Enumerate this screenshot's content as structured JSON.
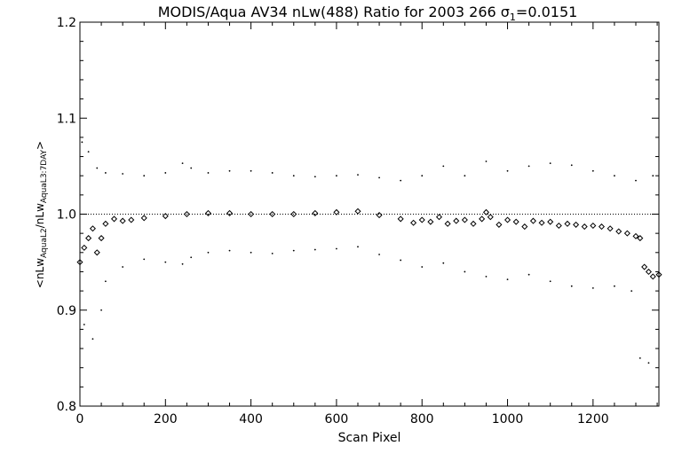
{
  "chart_data": {
    "type": "scatter",
    "title_main": "MODIS/Aqua AV34 nLw(488) Ratio for 2003 266 ",
    "title_sigma": "σ",
    "title_sigma_sub": "1",
    "title_sigma_value": "=0.0151",
    "xlabel": "Scan Pixel",
    "ylabel_parts": {
      "open": "<",
      "num": "nLw",
      "num_sub": "AquaL2",
      "slash": "/",
      "den": "nLw",
      "den_sub": "AquaL3:7DAY",
      "close": ">"
    },
    "xlim": [
      0,
      1354
    ],
    "ylim": [
      0.8,
      1.2
    ],
    "x_ticks": [
      0,
      200,
      400,
      600,
      800,
      1000,
      1200
    ],
    "x_tick_labels": [
      "0",
      "200",
      "400",
      "600",
      "800",
      "1000",
      "1200"
    ],
    "y_ticks": [
      0.8,
      0.9,
      1.0,
      1.1,
      1.2
    ],
    "y_tick_labels": [
      "0.8",
      "0.9",
      "1.0",
      "1.1",
      "1.2"
    ],
    "reference_line": 1.0,
    "series": [
      {
        "role": "mean",
        "x": [
          0,
          10,
          20,
          30,
          40,
          50,
          60,
          80,
          100,
          120,
          150,
          200,
          250,
          300,
          350,
          400,
          450,
          500,
          550,
          600,
          650,
          700,
          750,
          780,
          800,
          820,
          840,
          860,
          880,
          900,
          920,
          940,
          950,
          960,
          980,
          1000,
          1020,
          1040,
          1060,
          1080,
          1100,
          1120,
          1140,
          1160,
          1180,
          1200,
          1220,
          1240,
          1260,
          1280,
          1300,
          1310,
          1320,
          1330,
          1340,
          1354
        ],
        "y": [
          0.95,
          0.965,
          0.975,
          0.985,
          0.96,
          0.975,
          0.99,
          0.995,
          0.993,
          0.994,
          0.996,
          0.998,
          1.0,
          1.001,
          1.001,
          1.0,
          1.0,
          1.0,
          1.001,
          1.002,
          1.003,
          0.999,
          0.995,
          0.991,
          0.994,
          0.992,
          0.997,
          0.99,
          0.993,
          0.994,
          0.99,
          0.995,
          1.002,
          0.997,
          0.989,
          0.994,
          0.992,
          0.987,
          0.993,
          0.991,
          0.992,
          0.988,
          0.99,
          0.989,
          0.987,
          0.988,
          0.987,
          0.985,
          0.982,
          0.98,
          0.977,
          0.975,
          0.945,
          0.94,
          0.935,
          0.937
        ]
      },
      {
        "role": "upper",
        "x": [
          5,
          20,
          40,
          60,
          100,
          150,
          200,
          240,
          260,
          300,
          350,
          400,
          450,
          500,
          550,
          600,
          650,
          700,
          750,
          800,
          850,
          900,
          950,
          1000,
          1050,
          1100,
          1150,
          1200,
          1250,
          1300,
          1340
        ],
        "y": [
          1.075,
          1.065,
          1.048,
          1.043,
          1.042,
          1.04,
          1.043,
          1.053,
          1.048,
          1.043,
          1.045,
          1.045,
          1.043,
          1.04,
          1.039,
          1.04,
          1.041,
          1.038,
          1.035,
          1.04,
          1.05,
          1.04,
          1.055,
          1.045,
          1.05,
          1.053,
          1.051,
          1.045,
          1.04,
          1.035,
          1.04
        ]
      },
      {
        "role": "lower",
        "x": [
          10,
          30,
          50,
          60,
          100,
          150,
          200,
          240,
          260,
          300,
          350,
          400,
          450,
          500,
          550,
          600,
          650,
          700,
          750,
          800,
          850,
          900,
          950,
          1000,
          1050,
          1100,
          1150,
          1200,
          1250,
          1290,
          1310,
          1330
        ],
        "y": [
          0.885,
          0.87,
          0.9,
          0.93,
          0.945,
          0.953,
          0.95,
          0.948,
          0.955,
          0.96,
          0.962,
          0.96,
          0.959,
          0.962,
          0.963,
          0.964,
          0.966,
          0.958,
          0.952,
          0.945,
          0.949,
          0.94,
          0.935,
          0.932,
          0.937,
          0.93,
          0.925,
          0.923,
          0.925,
          0.92,
          0.85,
          0.845
        ]
      }
    ]
  }
}
